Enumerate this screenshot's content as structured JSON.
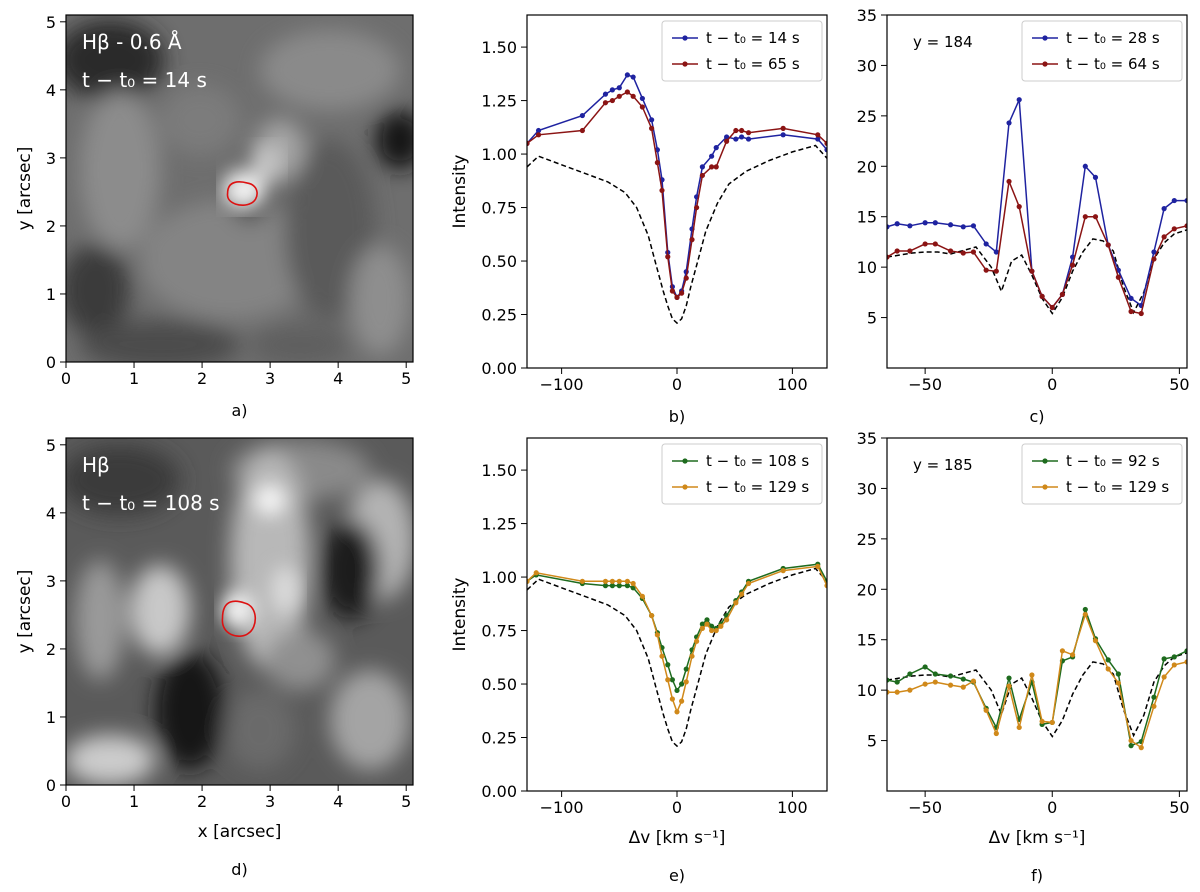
{
  "colors": {
    "blue": "#1f23a0",
    "darkred": "#8b1414",
    "green": "#1e6b1e",
    "orange": "#d0891a",
    "ref": "#000000",
    "contour": "#dd1111"
  },
  "chart_data": [
    {
      "id": "a",
      "type": "image",
      "panel_label": "a)",
      "title_line1": "Hβ - 0.6 Å",
      "title_line2": "t − t₀ = 14 s",
      "xlabel": "",
      "ylabel": "y [arcsec]",
      "xlim": [
        0,
        5.1
      ],
      "ylim": [
        0,
        5.1
      ],
      "xticks": [
        0,
        1,
        2,
        3,
        4,
        5
      ],
      "yticks": [
        0,
        1,
        2,
        3,
        4,
        5
      ],
      "contour_center": [
        2.6,
        2.48
      ],
      "contour_size": [
        0.45,
        0.3
      ]
    },
    {
      "id": "b",
      "type": "line",
      "panel_label": "b)",
      "xlabel": "",
      "ylabel": "Intensity",
      "xlim": [
        -130,
        130
      ],
      "ylim": [
        0,
        1.65
      ],
      "xticks": [
        -100,
        0,
        100
      ],
      "yticks": [
        0.0,
        0.25,
        0.5,
        0.75,
        1.0,
        1.25,
        1.5
      ],
      "ytick_labels": [
        "0.00",
        "0.25",
        "0.50",
        "0.75",
        "1.00",
        "1.25",
        "1.50"
      ],
      "series": [
        {
          "name": "t − t₀ = 14 s",
          "color": "blue",
          "markers": true,
          "x": [
            -130,
            -120,
            -82,
            -62,
            -56,
            -50,
            -43,
            -38,
            -30,
            -22,
            -17,
            -13,
            -8,
            -4,
            0,
            4,
            8,
            13,
            17,
            22,
            30,
            34,
            43,
            51,
            56,
            62,
            92,
            122,
            130
          ],
          "y": [
            1.05,
            1.11,
            1.18,
            1.28,
            1.3,
            1.31,
            1.37,
            1.36,
            1.26,
            1.16,
            1.02,
            0.88,
            0.54,
            0.38,
            0.33,
            0.36,
            0.45,
            0.65,
            0.8,
            0.94,
            0.99,
            1.03,
            1.08,
            1.07,
            1.08,
            1.07,
            1.09,
            1.07,
            1.02
          ]
        },
        {
          "name": "t − t₀ = 65 s",
          "color": "darkred",
          "markers": true,
          "x": [
            -130,
            -120,
            -82,
            -62,
            -56,
            -50,
            -43,
            -38,
            -30,
            -22,
            -17,
            -13,
            -8,
            -4,
            0,
            4,
            8,
            13,
            17,
            22,
            30,
            34,
            43,
            51,
            56,
            62,
            92,
            122,
            130
          ],
          "y": [
            1.05,
            1.09,
            1.11,
            1.24,
            1.25,
            1.27,
            1.29,
            1.27,
            1.22,
            1.12,
            0.96,
            0.83,
            0.52,
            0.36,
            0.33,
            0.35,
            0.42,
            0.6,
            0.75,
            0.9,
            0.94,
            0.94,
            1.06,
            1.11,
            1.11,
            1.1,
            1.12,
            1.09,
            1.05
          ]
        },
        {
          "name": "",
          "color": "ref",
          "dashed": true,
          "markers": false,
          "x": [
            -130,
            -120,
            -100,
            -80,
            -60,
            -45,
            -35,
            -25,
            -18,
            -12,
            -8,
            -4,
            0,
            4,
            8,
            12,
            18,
            25,
            35,
            45,
            60,
            80,
            100,
            120,
            130
          ],
          "y": [
            0.94,
            0.99,
            0.95,
            0.91,
            0.87,
            0.82,
            0.75,
            0.62,
            0.48,
            0.36,
            0.29,
            0.23,
            0.21,
            0.23,
            0.29,
            0.38,
            0.5,
            0.64,
            0.77,
            0.86,
            0.92,
            0.97,
            1.01,
            1.04,
            0.98
          ]
        }
      ]
    },
    {
      "id": "c",
      "type": "line",
      "panel_label": "c)",
      "xlabel": "",
      "ylabel": "",
      "annotation": "y = 184",
      "xlim": [
        -65,
        53
      ],
      "ylim": [
        0,
        35
      ],
      "xticks": [
        -50,
        0,
        50
      ],
      "yticks": [
        5,
        10,
        15,
        20,
        25,
        30,
        35
      ],
      "series": [
        {
          "name": "t − t₀ = 28 s",
          "color": "blue",
          "markers": true,
          "x": [
            -65,
            -61,
            -56,
            -50,
            -46,
            -40,
            -35,
            -31,
            -26,
            -22,
            -17,
            -13,
            -8,
            -4,
            0,
            4,
            8,
            13,
            17,
            22,
            26,
            31,
            35,
            40,
            44,
            48,
            53
          ],
          "y": [
            14.0,
            14.3,
            14.1,
            14.4,
            14.4,
            14.2,
            14.0,
            14.1,
            12.3,
            11.5,
            24.3,
            26.6,
            9.6,
            7.1,
            6.0,
            7.3,
            11.0,
            20.0,
            18.9,
            12.2,
            9.7,
            6.9,
            6.2,
            11.5,
            15.8,
            16.6,
            16.6
          ]
        },
        {
          "name": "t − t₀ = 64 s",
          "color": "darkred",
          "markers": true,
          "x": [
            -65,
            -61,
            -56,
            -50,
            -46,
            -40,
            -35,
            -31,
            -26,
            -22,
            -17,
            -13,
            -8,
            -4,
            0,
            4,
            8,
            13,
            17,
            22,
            26,
            31,
            35,
            40,
            44,
            48,
            53
          ],
          "y": [
            11.0,
            11.6,
            11.6,
            12.3,
            12.3,
            11.6,
            11.4,
            11.5,
            9.7,
            9.6,
            18.5,
            16.0,
            9.6,
            7.1,
            6.0,
            7.3,
            10.2,
            15.0,
            15.0,
            12.2,
            9.0,
            5.6,
            5.4,
            10.8,
            13.0,
            13.8,
            14.1
          ]
        },
        {
          "name": "",
          "color": "ref",
          "dashed": true,
          "markers": false,
          "x": [
            -65,
            -55,
            -50,
            -45,
            -40,
            -30,
            -24,
            -20,
            -16,
            -12,
            -8,
            -4,
            0,
            4,
            8,
            12,
            16,
            20,
            24,
            28,
            32,
            36,
            40,
            44,
            48,
            53
          ],
          "y": [
            11.0,
            11.4,
            11.5,
            11.5,
            11.3,
            12.0,
            10.0,
            7.6,
            10.6,
            11.2,
            9.2,
            6.9,
            5.4,
            7.0,
            9.6,
            11.5,
            12.8,
            12.6,
            11.6,
            8.1,
            5.5,
            7.5,
            10.8,
            12.4,
            13.3,
            13.7
          ]
        }
      ]
    },
    {
      "id": "d",
      "type": "image",
      "panel_label": "d)",
      "title_line1": "Hβ",
      "title_line2": "t − t₀ = 108 s",
      "xlabel": "x [arcsec]",
      "ylabel": "y [arcsec]",
      "xlim": [
        0,
        5.1
      ],
      "ylim": [
        0,
        5.1
      ],
      "xticks": [
        0,
        1,
        2,
        3,
        4,
        5
      ],
      "yticks": [
        0,
        1,
        2,
        3,
        4,
        5
      ],
      "contour_center": [
        2.55,
        2.45
      ],
      "contour_size": [
        0.5,
        0.45
      ]
    },
    {
      "id": "e",
      "type": "line",
      "panel_label": "e)",
      "xlabel": "Δv [km s⁻¹]",
      "ylabel": "Intensity",
      "xlim": [
        -130,
        130
      ],
      "ylim": [
        0,
        1.65
      ],
      "xticks": [
        -100,
        0,
        100
      ],
      "yticks": [
        0.0,
        0.25,
        0.5,
        0.75,
        1.0,
        1.25,
        1.5
      ],
      "ytick_labels": [
        "0.00",
        "0.25",
        "0.50",
        "0.75",
        "1.00",
        "1.25",
        "1.50"
      ],
      "series": [
        {
          "name": "t − t₀ = 108 s",
          "color": "green",
          "markers": true,
          "x": [
            -130,
            -122,
            -82,
            -62,
            -56,
            -50,
            -43,
            -38,
            -30,
            -22,
            -17,
            -13,
            -8,
            -4,
            0,
            4,
            8,
            13,
            17,
            22,
            26,
            30,
            34,
            38,
            43,
            51,
            56,
            62,
            92,
            122,
            130
          ],
          "y": [
            0.98,
            1.01,
            0.97,
            0.96,
            0.96,
            0.96,
            0.96,
            0.95,
            0.9,
            0.82,
            0.74,
            0.67,
            0.59,
            0.52,
            0.47,
            0.5,
            0.57,
            0.66,
            0.72,
            0.78,
            0.8,
            0.77,
            0.76,
            0.78,
            0.82,
            0.89,
            0.93,
            0.98,
            1.04,
            1.06,
            0.98
          ]
        },
        {
          "name": "t − t₀ = 129 s",
          "color": "orange",
          "markers": true,
          "x": [
            -130,
            -122,
            -82,
            -62,
            -56,
            -50,
            -43,
            -38,
            -30,
            -22,
            -17,
            -13,
            -8,
            -4,
            0,
            4,
            8,
            13,
            17,
            22,
            26,
            30,
            34,
            38,
            43,
            51,
            56,
            62,
            92,
            122,
            130
          ],
          "y": [
            0.98,
            1.02,
            0.98,
            0.98,
            0.98,
            0.98,
            0.98,
            0.97,
            0.91,
            0.82,
            0.73,
            0.63,
            0.52,
            0.43,
            0.37,
            0.42,
            0.51,
            0.63,
            0.7,
            0.76,
            0.78,
            0.75,
            0.75,
            0.77,
            0.8,
            0.88,
            0.92,
            0.97,
            1.03,
            1.05,
            0.96
          ]
        },
        {
          "name": "",
          "color": "ref",
          "dashed": true,
          "markers": false,
          "x": [
            -130,
            -120,
            -100,
            -80,
            -60,
            -45,
            -35,
            -25,
            -18,
            -12,
            -8,
            -4,
            0,
            4,
            8,
            12,
            18,
            25,
            35,
            45,
            60,
            80,
            100,
            120,
            130
          ],
          "y": [
            0.94,
            0.99,
            0.95,
            0.91,
            0.87,
            0.82,
            0.75,
            0.62,
            0.48,
            0.36,
            0.29,
            0.23,
            0.21,
            0.23,
            0.29,
            0.38,
            0.5,
            0.64,
            0.77,
            0.86,
            0.92,
            0.97,
            1.01,
            1.04,
            0.98
          ]
        }
      ]
    },
    {
      "id": "f",
      "type": "line",
      "panel_label": "f)",
      "xlabel": "Δv [km s⁻¹]",
      "ylabel": "",
      "annotation": "y = 185",
      "xlim": [
        -65,
        53
      ],
      "ylim": [
        0,
        35
      ],
      "xticks": [
        -50,
        0,
        50
      ],
      "yticks": [
        5,
        10,
        15,
        20,
        25,
        30,
        35
      ],
      "series": [
        {
          "name": "t − t₀ = 92 s",
          "color": "green",
          "markers": true,
          "x": [
            -65,
            -61,
            -56,
            -50,
            -46,
            -40,
            -35,
            -31,
            -26,
            -22,
            -17,
            -13,
            -8,
            -4,
            0,
            4,
            8,
            13,
            17,
            22,
            26,
            31,
            35,
            40,
            44,
            48,
            53
          ],
          "y": [
            11.0,
            10.8,
            11.6,
            12.3,
            11.6,
            11.4,
            11.1,
            10.8,
            8.2,
            6.3,
            11.2,
            7.1,
            10.8,
            6.6,
            6.8,
            12.9,
            13.3,
            18.0,
            15.1,
            13.0,
            11.6,
            4.5,
            4.9,
            9.3,
            13.1,
            13.3,
            13.9
          ]
        },
        {
          "name": "t − t₀ = 129 s",
          "color": "orange",
          "markers": true,
          "x": [
            -65,
            -61,
            -56,
            -50,
            -46,
            -40,
            -35,
            -31,
            -26,
            -22,
            -17,
            -13,
            -8,
            -4,
            0,
            4,
            8,
            13,
            17,
            22,
            26,
            31,
            35,
            40,
            44,
            48,
            53
          ],
          "y": [
            9.8,
            9.8,
            10.0,
            10.6,
            10.8,
            10.5,
            10.3,
            10.9,
            8.0,
            5.7,
            10.4,
            6.3,
            11.5,
            6.9,
            6.8,
            13.9,
            13.5,
            17.5,
            14.9,
            12.1,
            10.7,
            5.0,
            4.3,
            8.4,
            11.3,
            12.5,
            12.8
          ]
        },
        {
          "name": "",
          "color": "ref",
          "dashed": true,
          "markers": false,
          "x": [
            -65,
            -55,
            -50,
            -45,
            -40,
            -30,
            -24,
            -20,
            -16,
            -12,
            -8,
            -4,
            0,
            4,
            8,
            12,
            16,
            20,
            24,
            28,
            32,
            36,
            40,
            44,
            48,
            53
          ],
          "y": [
            11.0,
            11.4,
            11.5,
            11.5,
            11.3,
            12.0,
            10.0,
            7.6,
            10.6,
            11.2,
            9.2,
            6.9,
            5.4,
            7.0,
            9.6,
            11.5,
            12.8,
            12.6,
            11.6,
            8.1,
            5.5,
            7.5,
            10.8,
            12.4,
            13.3,
            13.7
          ]
        }
      ]
    }
  ]
}
